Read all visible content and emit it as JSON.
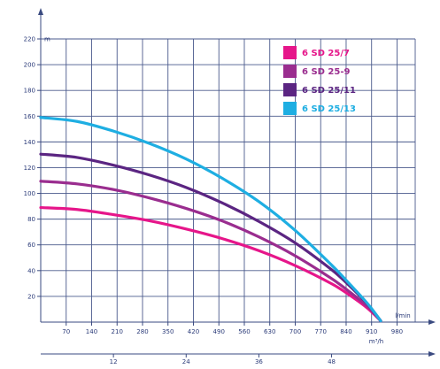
{
  "chart_data": {
    "type": "line",
    "title": "",
    "ylabel": "m",
    "xlabel": "l/min",
    "x2label": "m³/h",
    "ylim": [
      0,
      220
    ],
    "xlim": [
      0,
      1030
    ],
    "yticks": [
      20,
      40,
      60,
      80,
      100,
      120,
      140,
      160,
      180,
      200,
      220
    ],
    "xticks": [
      70,
      140,
      210,
      280,
      350,
      420,
      490,
      560,
      630,
      700,
      770,
      840,
      910,
      980
    ],
    "x2ticks": [
      {
        "label": "12",
        "value": 12
      },
      {
        "label": "24",
        "value": 24
      },
      {
        "label": "36",
        "value": 36
      },
      {
        "label": "48",
        "value": 48
      }
    ],
    "grid": true,
    "legend_position": "top-right",
    "series": [
      {
        "name": "6 SD 25/7",
        "color": "#e6168a",
        "x": [
          0,
          100,
          200,
          300,
          400,
          500,
          600,
          700,
          800,
          850,
          900,
          935
        ],
        "y": [
          89,
          87.5,
          83.5,
          78.7,
          72.3,
          64.8,
          55.5,
          43.9,
          29.8,
          20.9,
          10.5,
          1
        ]
      },
      {
        "name": "6 SD 25-9",
        "color": "#9a2d8f",
        "x": [
          0,
          100,
          200,
          300,
          400,
          500,
          600,
          700,
          800,
          850,
          900,
          935
        ],
        "y": [
          109.5,
          107.4,
          103,
          96.4,
          88.3,
          78.5,
          66.2,
          51.5,
          33.8,
          23.4,
          11.8,
          1
        ]
      },
      {
        "name": "6 SD 25/11",
        "color": "#5b2582",
        "x": [
          0,
          100,
          200,
          300,
          400,
          500,
          600,
          700,
          800,
          850,
          900,
          935
        ],
        "y": [
          130.5,
          127.9,
          121.9,
          114.2,
          104.6,
          92.5,
          78.2,
          61.5,
          40.7,
          28,
          13.6,
          1
        ]
      },
      {
        "name": "6 SD 25/13",
        "color": "#1eaee2",
        "x": [
          0,
          100,
          200,
          300,
          400,
          500,
          600,
          700,
          800,
          850,
          900,
          935
        ],
        "y": [
          159,
          155.9,
          148.4,
          138.7,
          126.7,
          111.6,
          93.6,
          71.2,
          44.3,
          29.5,
          14,
          1
        ]
      }
    ]
  }
}
